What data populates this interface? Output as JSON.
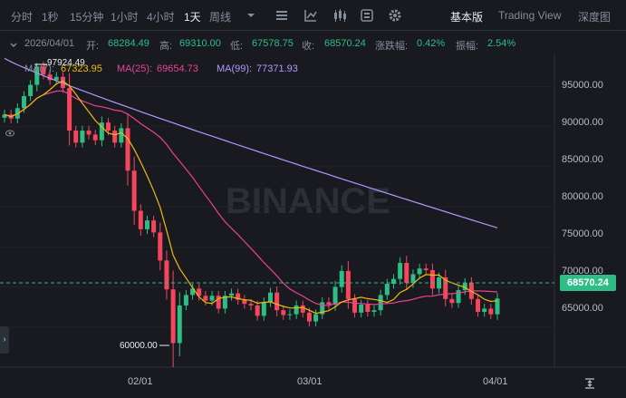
{
  "toolbar": {
    "intervals": [
      "分时",
      "1秒",
      "15分钟",
      "1小时",
      "4小时",
      "1天"
    ],
    "active_interval": "1天",
    "more_label": "周线",
    "views": [
      "基本版",
      "Trading View",
      "深度图"
    ],
    "active_view": "基本版",
    "icons": [
      "dropdown-icon",
      "indicator-settings-icon",
      "drawing-tool-icon",
      "candle-type-icon",
      "template-icon",
      "gear-icon"
    ]
  },
  "ohlc": {
    "date": "2026/04/01",
    "open_label": "开:",
    "open": "68284.49",
    "high_label": "高:",
    "high": "69310.00",
    "low_label": "低:",
    "low": "67578.75",
    "close_label": "收:",
    "close": "68570.24",
    "change_label": "涨跌幅:",
    "change": "0.42%",
    "amplitude_label": "振幅:",
    "amplitude": "2.54%"
  },
  "ma": {
    "ma7_label": "MA(7):",
    "ma7": "67323.95",
    "ma25_label": "MA(25):",
    "ma25": "69654.73",
    "ma99_label": "MA(99):",
    "ma99": "77371.93",
    "colors": {
      "ma7": "#f0b90b",
      "ma25": "#e84393",
      "ma99": "#b197fc"
    }
  },
  "y_axis": [
    "95000.00",
    "90000.00",
    "85000.00",
    "80000.00",
    "75000.00",
    "70000.00",
    "65000.00"
  ],
  "x_axis": [
    "02/01",
    "03/01",
    "04/01"
  ],
  "current_price": "68570.24",
  "annotations": {
    "high": "97924.49",
    "low": "60000.00"
  },
  "watermark": "BINANCE",
  "colors": {
    "up": "#2ebd85",
    "down": "#f6465d",
    "background": "#181a20"
  },
  "chart_data": {
    "type": "candlestick",
    "y_range": [
      60000,
      99000
    ],
    "close_series": [
      91500,
      91000,
      92300,
      93800,
      95200,
      97500,
      96500,
      95800,
      96200,
      94800,
      89500,
      88000,
      89500,
      89000,
      88300,
      90500,
      89500,
      88000,
      89800,
      84500,
      79500,
      77200,
      78300,
      76800,
      73300,
      69700,
      63000,
      67700,
      69000,
      69800,
      68900,
      68300,
      68900,
      67300,
      68900,
      69200,
      68400,
      67900,
      67700,
      66400,
      68100,
      69300,
      67100,
      66500,
      66600,
      67700,
      66800,
      65700,
      66600,
      68100,
      67800,
      70000,
      72000,
      68500,
      66800,
      67800,
      66900,
      67100,
      69000,
      70400,
      71000,
      73000,
      70500,
      71600,
      72300,
      72100,
      69800,
      71200,
      68500,
      68000,
      69600,
      70500,
      68500,
      66900,
      67300,
      66600,
      68570
    ]
  }
}
